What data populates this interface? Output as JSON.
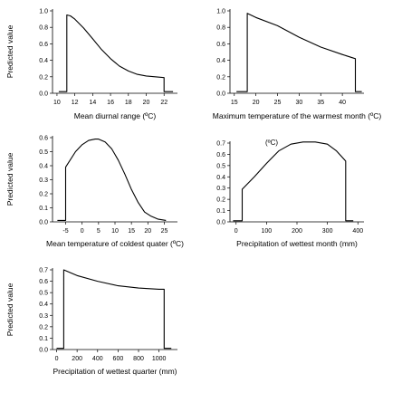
{
  "chart_data": [
    {
      "type": "line",
      "xlabel": "Mean diurnal range (ºC)",
      "ylabel": "Predicted value",
      "xlim": [
        9.5,
        23.5
      ],
      "ylim": [
        0,
        1.0
      ],
      "xticks": [
        10,
        12,
        14,
        16,
        18,
        20,
        22
      ],
      "yticks": [
        0.0,
        0.2,
        0.4,
        0.6,
        0.8,
        1.0
      ],
      "ytick_labels": [
        "0.0",
        "0.2",
        "0.4",
        "0.6",
        "0.8",
        "1.0"
      ],
      "x": [
        10.2,
        11.1,
        11.1,
        11.5,
        12.0,
        13.0,
        14.0,
        15.0,
        16.0,
        17.0,
        18.0,
        19.0,
        20.0,
        21.0,
        22.0,
        22.0,
        23.0
      ],
      "y": [
        0.02,
        0.02,
        0.95,
        0.94,
        0.9,
        0.79,
        0.66,
        0.53,
        0.42,
        0.33,
        0.27,
        0.23,
        0.21,
        0.2,
        0.19,
        0.02,
        0.02
      ]
    },
    {
      "type": "line",
      "xlabel": "Maximum temperature of the warmest month (ºC)",
      "ylabel": "",
      "xlim": [
        14,
        45
      ],
      "ylim": [
        0,
        1.0
      ],
      "xticks": [
        15,
        20,
        25,
        30,
        35,
        40
      ],
      "yticks": [
        0.0,
        0.2,
        0.4,
        0.6,
        0.8,
        1.0
      ],
      "ytick_labels": [
        "0.0",
        "0.2",
        "0.4",
        "0.6",
        "0.8",
        "1.0"
      ],
      "x": [
        15.5,
        18.0,
        18.0,
        20.0,
        25.0,
        30.0,
        35.0,
        40.0,
        43.0,
        43.0,
        44.5
      ],
      "y": [
        0.02,
        0.02,
        0.97,
        0.92,
        0.82,
        0.68,
        0.56,
        0.47,
        0.42,
        0.02,
        0.02
      ]
    },
    {
      "type": "line",
      "xlabel": "Mean temperature of coldest quater (ºC)",
      "ylabel": "Predicted value",
      "xlim": [
        -9,
        29
      ],
      "ylim": [
        0,
        0.6
      ],
      "xticks": [
        -5,
        0,
        5,
        10,
        15,
        20,
        25
      ],
      "yticks": [
        0.0,
        0.1,
        0.2,
        0.3,
        0.4,
        0.5,
        0.6
      ],
      "ytick_labels": [
        "0.0",
        "0.1",
        "0.2",
        "0.3",
        "0.4",
        "0.5",
        "0.6"
      ],
      "x": [
        -7.5,
        -5.0,
        -5.0,
        -2.0,
        0.0,
        2.0,
        4.0,
        5.0,
        7.0,
        9.0,
        11.0,
        13.0,
        15.0,
        17.0,
        19.0,
        21.0,
        23.0,
        25.5
      ],
      "y": [
        0.01,
        0.01,
        0.39,
        0.5,
        0.55,
        0.58,
        0.59,
        0.59,
        0.57,
        0.52,
        0.44,
        0.34,
        0.23,
        0.14,
        0.07,
        0.04,
        0.02,
        0.01
      ]
    },
    {
      "type": "line",
      "xlabel": "Precipitation of wettest month (mm)",
      "ylabel": "",
      "annotation": "(ºC)",
      "xlim": [
        -20,
        420
      ],
      "ylim": [
        0,
        0.7
      ],
      "xticks": [
        0,
        100,
        200,
        300,
        400
      ],
      "yticks": [
        0.0,
        0.1,
        0.2,
        0.3,
        0.4,
        0.5,
        0.6,
        0.7
      ],
      "ytick_labels": [
        "0.0",
        "0.1",
        "0.2",
        "0.3",
        "0.4",
        "0.5",
        "0.6",
        "0.7"
      ],
      "x": [
        -10,
        20,
        20,
        60,
        100,
        140,
        180,
        220,
        260,
        300,
        330,
        360,
        360,
        385
      ],
      "y": [
        0.01,
        0.01,
        0.29,
        0.4,
        0.52,
        0.63,
        0.69,
        0.71,
        0.71,
        0.69,
        0.63,
        0.54,
        0.01,
        0.01
      ]
    },
    {
      "type": "line",
      "xlabel": "Precipitation of wettest quarter (mm)",
      "ylabel": "Predicted value",
      "xlim": [
        -40,
        1180
      ],
      "ylim": [
        0,
        0.7
      ],
      "xticks": [
        0,
        200,
        400,
        600,
        800,
        1000
      ],
      "yticks": [
        0.0,
        0.1,
        0.2,
        0.3,
        0.4,
        0.5,
        0.6,
        0.7
      ],
      "ytick_labels": [
        "0.0",
        "0.1",
        "0.2",
        "0.3",
        "0.4",
        "0.5",
        "0.6",
        "0.7"
      ],
      "x": [
        0,
        70,
        70,
        200,
        400,
        600,
        800,
        1000,
        1050,
        1050,
        1120
      ],
      "y": [
        0.01,
        0.01,
        0.7,
        0.65,
        0.6,
        0.56,
        0.54,
        0.53,
        0.53,
        0.01,
        0.01
      ]
    }
  ]
}
